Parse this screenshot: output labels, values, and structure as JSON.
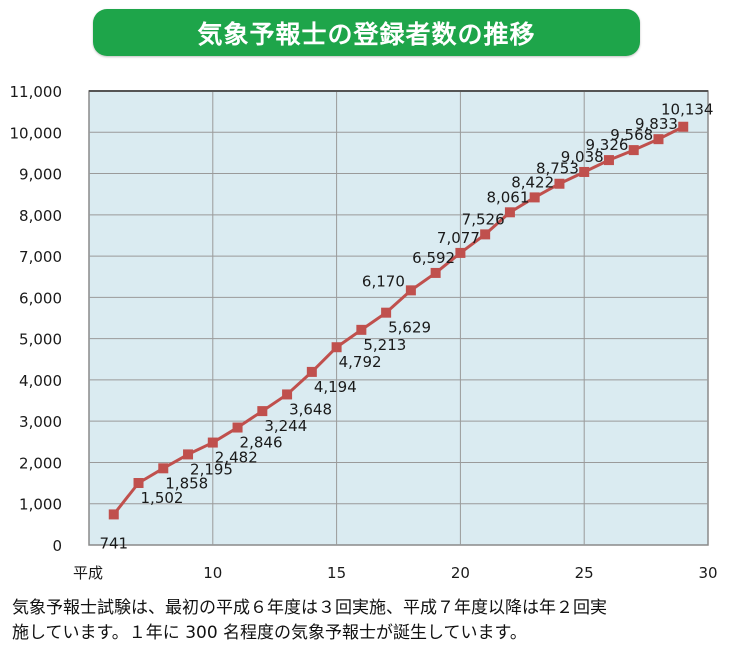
{
  "header": {
    "title": "気象予報士の登録者数の推移"
  },
  "colors": {
    "title_bg": "#1ea54a",
    "plot_bg": "#daebf1",
    "gridline": "#9a9a9a",
    "series": "#c0504d"
  },
  "chart_data": {
    "type": "line",
    "title": "気象予報士の登録者数の推移",
    "xlabel": "平成",
    "ylabel": "",
    "x": [
      6,
      7,
      8,
      9,
      10,
      11,
      12,
      13,
      14,
      15,
      16,
      17,
      18,
      19,
      20,
      21,
      22,
      23,
      24,
      25,
      26,
      27,
      28,
      29
    ],
    "series": [
      {
        "name": "登録者数",
        "values": [
          741,
          1502,
          1858,
          2195,
          2482,
          2846,
          3244,
          3648,
          4194,
          4792,
          5213,
          5629,
          6170,
          6592,
          7077,
          7526,
          8061,
          8422,
          8753,
          9038,
          9326,
          9568,
          9833,
          10134
        ],
        "labels": [
          "741",
          "1,502",
          "1,858",
          "2,195",
          "2,482",
          "2,846",
          "3,244",
          "3,648",
          "4,194",
          "4,792",
          "5,213",
          "5,629",
          "6,170",
          "6,592",
          "7,077",
          "7,526",
          "8,061",
          "8,422",
          "8,753",
          "9,038",
          "9,326",
          "9,568",
          "9,833",
          "10,134"
        ]
      }
    ],
    "xlim": [
      5,
      30
    ],
    "ylim": [
      0,
      11000
    ],
    "xticks": [
      {
        "value": 5,
        "label": "平成"
      },
      {
        "value": 10,
        "label": "10"
      },
      {
        "value": 15,
        "label": "15"
      },
      {
        "value": 20,
        "label": "20"
      },
      {
        "value": 25,
        "label": "25"
      },
      {
        "value": 30,
        "label": "30"
      }
    ],
    "yticks": [
      {
        "value": 0,
        "label": "0"
      },
      {
        "value": 1000,
        "label": "1,000"
      },
      {
        "value": 2000,
        "label": "2,000"
      },
      {
        "value": 3000,
        "label": "3,000"
      },
      {
        "value": 4000,
        "label": "4,000"
      },
      {
        "value": 5000,
        "label": "5,000"
      },
      {
        "value": 6000,
        "label": "6,000"
      },
      {
        "value": 7000,
        "label": "7,000"
      },
      {
        "value": 8000,
        "label": "8,000"
      },
      {
        "value": 9000,
        "label": "9,000"
      },
      {
        "value": 10000,
        "label": "10,000"
      },
      {
        "value": 11000,
        "label": "11,000"
      }
    ],
    "grid": true,
    "legend": "none"
  },
  "footer": {
    "line1": "気象予報士試験は、最初の平成６年度は３回実施、平成７年度以降は年２回実",
    "line2": "施しています。１年に 300 名程度の気象予報士が誕生しています。"
  }
}
